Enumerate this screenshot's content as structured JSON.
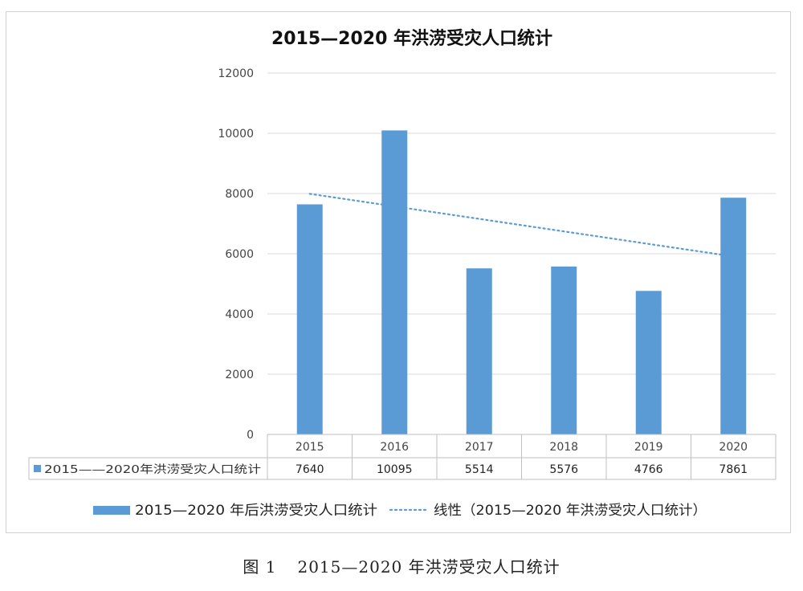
{
  "chart_data": {
    "type": "bar",
    "title": "2015—2020 年洪涝受灾人口统计",
    "categories": [
      "2015",
      "2016",
      "2017",
      "2018",
      "2019",
      "2020"
    ],
    "series": [
      {
        "name": "2015——2020年洪涝受灾人口统计",
        "values": [
          7640,
          10095,
          5514,
          5576,
          4766,
          7861
        ],
        "color": "#5b9bd5"
      }
    ],
    "trendline": {
      "type": "linear",
      "style": "dotted",
      "start_value": 7990,
      "end_value": 5910,
      "color": "#5b9bd5"
    },
    "ylim": [
      0,
      12000
    ],
    "yticks": [
      "0",
      "2000",
      "4000",
      "6000",
      "8000",
      "10000",
      "12000"
    ],
    "grid": true,
    "data_table": {
      "row_label": "2015——2020年洪涝受灾人口统计",
      "values": [
        "7640",
        "10095",
        "5514",
        "5576",
        "4766",
        "7861"
      ]
    },
    "legend": {
      "position": "bottom",
      "bar_label": "2015—2020 年后洪涝受灾人口统计",
      "line_label": "线性（2015—2020 年洪涝受灾人口统计）"
    }
  },
  "caption": {
    "figure_label": "图 1",
    "text": "2015—2020 年洪涝受灾人口统计"
  }
}
